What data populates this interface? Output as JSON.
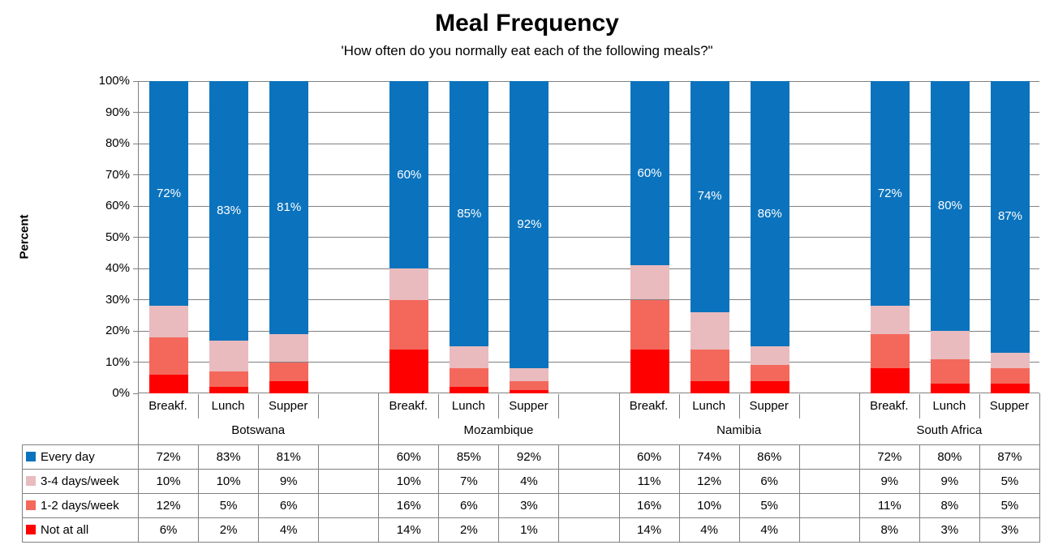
{
  "title": "Meal Frequency",
  "subtitle": "'How often do you normally eat each of the following meals?\"",
  "ylabel": "Percent",
  "colors": {
    "every_day": "#0B73BD",
    "three_four_days": "#E9BBBE",
    "one_two_days": "#F4685C",
    "not_at_all": "#FF0000",
    "grid": "#808080",
    "bar_label": "#FFFFFF",
    "text": "#000000"
  },
  "chart_data": {
    "type": "bar",
    "stacked": true,
    "unit": "%",
    "ylim": [
      0,
      100
    ],
    "y_tick_labels": [
      "0%",
      "10%",
      "20%",
      "30%",
      "40%",
      "50%",
      "60%",
      "70%",
      "80%",
      "90%",
      "100%"
    ],
    "grid": true,
    "legend_position": "table-left",
    "categories": [
      "Breakf.",
      "Lunch",
      "Supper"
    ],
    "groups": [
      "Botswana",
      "Mozambique",
      "Namibia",
      "South Africa"
    ],
    "series": [
      {
        "name": "Every day",
        "color": "#0B73BD",
        "data_labels": true,
        "values": [
          [
            72,
            83,
            81
          ],
          [
            60,
            85,
            92
          ],
          [
            60,
            74,
            86
          ],
          [
            72,
            80,
            87
          ]
        ]
      },
      {
        "name": "3-4 days/week",
        "color": "#E9BBBE",
        "data_labels": false,
        "values": [
          [
            10,
            10,
            9
          ],
          [
            10,
            7,
            4
          ],
          [
            11,
            12,
            6
          ],
          [
            9,
            9,
            5
          ]
        ]
      },
      {
        "name": "1-2 days/week",
        "color": "#F4685C",
        "data_labels": false,
        "values": [
          [
            12,
            5,
            6
          ],
          [
            16,
            6,
            3
          ],
          [
            16,
            10,
            5
          ],
          [
            11,
            8,
            5
          ]
        ]
      },
      {
        "name": "Not at all",
        "color": "#FF0000",
        "data_labels": false,
        "values": [
          [
            6,
            2,
            4
          ],
          [
            14,
            2,
            1
          ],
          [
            14,
            4,
            4
          ],
          [
            8,
            3,
            3
          ]
        ]
      }
    ]
  }
}
